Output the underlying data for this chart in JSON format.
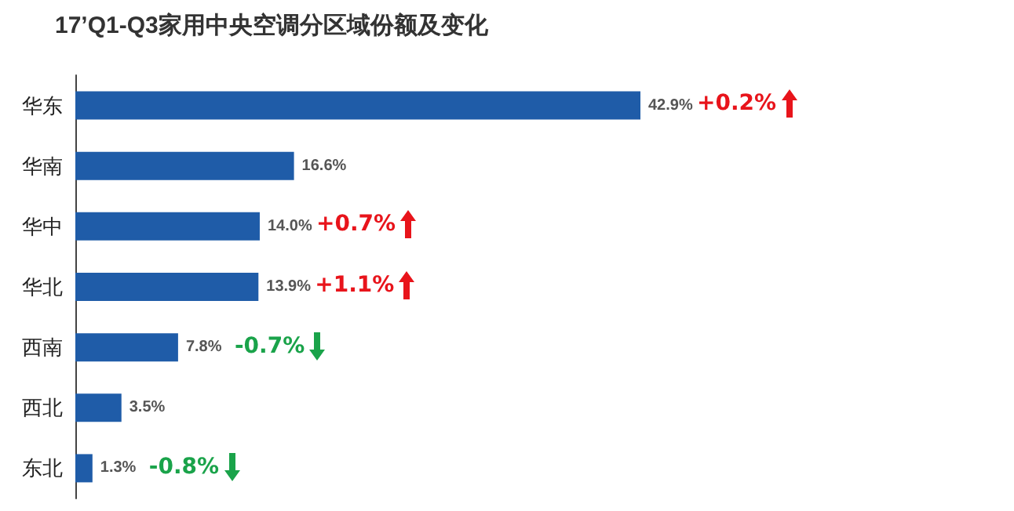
{
  "chart_data": {
    "type": "bar",
    "orientation": "horizontal",
    "title": "17’Q1-Q3家用中央空调分区域份额及变化",
    "categories": [
      "华东",
      "华南",
      "华中",
      "华北",
      "西南",
      "西北",
      "东北"
    ],
    "values": [
      42.9,
      16.6,
      14.0,
      13.9,
      7.8,
      3.5,
      1.3
    ],
    "value_labels": [
      "42.9%",
      "16.6%",
      "14.0%",
      "13.9%",
      "7.8%",
      "3.5%",
      "1.3%"
    ],
    "color": "#1f5ca8",
    "annotations": [
      {
        "text": "+0.2%",
        "x": 42.9,
        "y": "华东"
      },
      {
        "text": "+0.7%",
        "x": 14.0,
        "y": "华中"
      },
      {
        "text": "+1.1%",
        "x": 13.9,
        "y": "华北"
      },
      {
        "text": "-0.7%",
        "x": 7.8,
        "y": "西南"
      },
      {
        "text": "-0.8%",
        "x": 1.3,
        "y": "东北"
      }
    ]
  }
}
